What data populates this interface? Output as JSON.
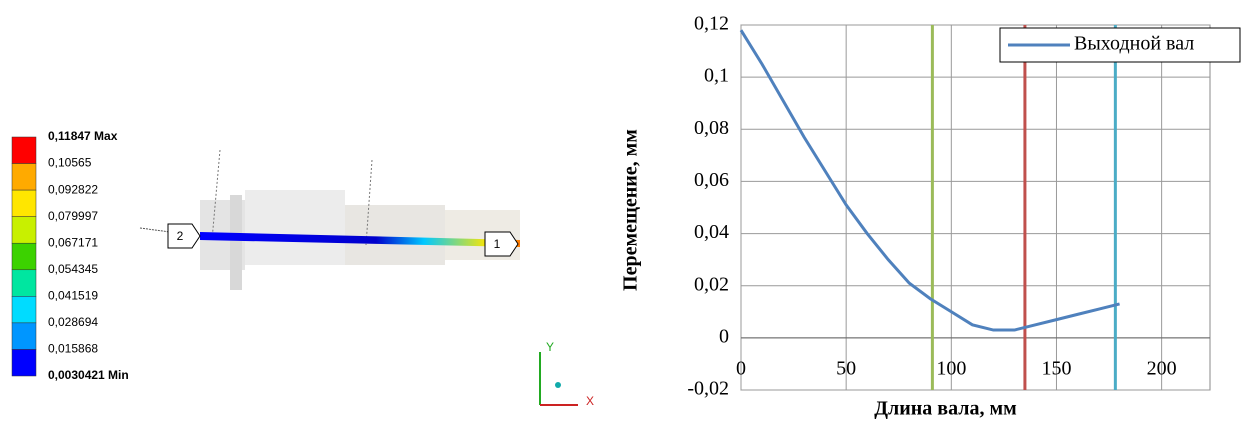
{
  "legend_panel": {
    "labels": [
      "0,11847 Max",
      "0,10565",
      "0,092822",
      "0,079997",
      "0,067171",
      "0,054345",
      "0,041519",
      "0,028694",
      "0,015868",
      "0,0030421 Min"
    ],
    "colors": [
      "#ff0000",
      "#ffaa00",
      "#ffe600",
      "#c8f000",
      "#3cd200",
      "#00e6a0",
      "#00dcff",
      "#0096ff",
      "#0000ff"
    ]
  },
  "model": {
    "callouts": [
      "1",
      "2"
    ],
    "axes": [
      "Y",
      "X"
    ]
  },
  "chart_data": {
    "type": "line",
    "x_label": "Длина вала, мм",
    "y_label": "Перемещение, мм",
    "x": [
      0,
      10,
      20,
      30,
      40,
      50,
      60,
      70,
      80,
      90,
      100,
      110,
      120,
      130,
      140,
      150,
      160,
      170,
      180
    ],
    "series": [
      {
        "name": "Выходной вал",
        "color": "#4f81bd",
        "values": [
          0.118,
          0.105,
          0.091,
          0.077,
          0.064,
          0.051,
          0.04,
          0.03,
          0.021,
          0.015,
          0.01,
          0.005,
          0.003,
          0.003,
          0.005,
          0.007,
          0.009,
          0.011,
          0.013
        ]
      }
    ],
    "vlines": [
      {
        "x": 91,
        "color": "#9bbb59"
      },
      {
        "x": 135,
        "color": "#c0504d"
      },
      {
        "x": 178,
        "color": "#4bacc6"
      }
    ],
    "xlim": [
      0,
      223
    ],
    "ylim": [
      -0.02,
      0.12
    ],
    "xticks": [
      0,
      50,
      100,
      150,
      200
    ],
    "yticks": [
      {
        "value": 0.12,
        "label": "0,12"
      },
      {
        "value": 0.1,
        "label": "0,1"
      },
      {
        "value": 0.08,
        "label": "0,08"
      },
      {
        "value": 0.06,
        "label": "0,06"
      },
      {
        "value": 0.04,
        "label": "0,04"
      },
      {
        "value": 0.02,
        "label": "0,02"
      },
      0,
      {
        "value": -0.02,
        "label": "-0,02"
      }
    ],
    "grid": true,
    "legend": "top-right"
  }
}
